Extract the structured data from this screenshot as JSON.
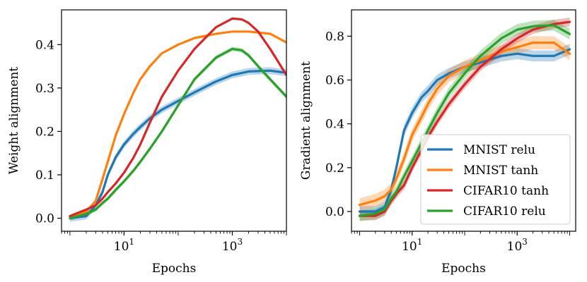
{
  "chart_data": [
    {
      "type": "line",
      "xscale": "log",
      "xlabel": "Epochs",
      "ylabel": "Weight alignment",
      "xlim": [
        0.7,
        10000
      ],
      "ylim": [
        -0.03,
        0.48
      ],
      "xticks": [
        {
          "value": 10,
          "base": "10",
          "exp": "1"
        },
        {
          "value": 1000,
          "base": "10",
          "exp": "3"
        }
      ],
      "yticks": [
        {
          "value": 0.0,
          "label": "0.0"
        },
        {
          "value": 0.1,
          "label": "0.1"
        },
        {
          "value": 0.2,
          "label": "0.2"
        },
        {
          "value": 0.3,
          "label": "0.3"
        },
        {
          "value": 0.4,
          "label": "0.4"
        }
      ],
      "series": [
        {
          "name": "MNIST relu",
          "color": "#1f77b4",
          "band": 0.008,
          "x": [
            1,
            2,
            3,
            4,
            5,
            7,
            10,
            15,
            20,
            30,
            50,
            100,
            200,
            500,
            1000,
            2000,
            5000,
            10000
          ],
          "y": [
            0.0,
            0.005,
            0.03,
            0.06,
            0.1,
            0.14,
            0.17,
            0.195,
            0.21,
            0.23,
            0.25,
            0.27,
            0.29,
            0.315,
            0.33,
            0.338,
            0.34,
            0.335
          ]
        },
        {
          "name": "MNIST tanh",
          "color": "#ff7f0e",
          "band": 0.0,
          "x": [
            1,
            2,
            3,
            4,
            5,
            7,
            10,
            15,
            20,
            30,
            50,
            100,
            200,
            500,
            1000,
            2000,
            5000,
            10000
          ],
          "y": [
            0.0,
            0.015,
            0.04,
            0.09,
            0.13,
            0.19,
            0.24,
            0.29,
            0.32,
            0.35,
            0.38,
            0.4,
            0.415,
            0.425,
            0.43,
            0.43,
            0.425,
            0.405
          ]
        },
        {
          "name": "CIFAR10 tanh",
          "color": "#d62728",
          "band": 0.0,
          "x": [
            1,
            2,
            3,
            4,
            5,
            7,
            10,
            15,
            20,
            30,
            50,
            100,
            200,
            500,
            1000,
            1500,
            2000,
            3000,
            5000,
            10000
          ],
          "y": [
            0.005,
            0.02,
            0.03,
            0.045,
            0.06,
            0.08,
            0.105,
            0.14,
            0.17,
            0.22,
            0.28,
            0.34,
            0.39,
            0.44,
            0.46,
            0.458,
            0.45,
            0.43,
            0.39,
            0.33
          ]
        },
        {
          "name": "CIFAR10 relu",
          "color": "#2ca02c",
          "band": 0.005,
          "x": [
            1,
            2,
            3,
            4,
            5,
            7,
            10,
            15,
            20,
            30,
            50,
            100,
            200,
            500,
            1000,
            1500,
            2000,
            3000,
            5000,
            10000
          ],
          "y": [
            0.0,
            0.01,
            0.02,
            0.035,
            0.045,
            0.065,
            0.085,
            0.11,
            0.13,
            0.16,
            0.2,
            0.26,
            0.32,
            0.37,
            0.39,
            0.387,
            0.375,
            0.35,
            0.32,
            0.28
          ]
        }
      ]
    },
    {
      "type": "line",
      "xscale": "log",
      "xlabel": "Epochs",
      "ylabel": "Gradient alignment",
      "xlim": [
        0.7,
        13000
      ],
      "ylim": [
        -0.09,
        0.92
      ],
      "xticks": [
        {
          "value": 10,
          "base": "10",
          "exp": "1"
        },
        {
          "value": 1000,
          "base": "10",
          "exp": "3"
        }
      ],
      "yticks": [
        {
          "value": 0.0,
          "label": "0.0"
        },
        {
          "value": 0.2,
          "label": "0.2"
        },
        {
          "value": 0.4,
          "label": "0.4"
        },
        {
          "value": 0.6,
          "label": "0.6"
        },
        {
          "value": 0.8,
          "label": "0.8"
        }
      ],
      "legend": {
        "placement": "lower-right"
      },
      "series": [
        {
          "name": "MNIST relu",
          "color": "#1f77b4",
          "band": 0.025,
          "x": [
            1,
            2,
            3,
            4,
            5,
            7,
            10,
            15,
            20,
            30,
            50,
            100,
            200,
            500,
            1000,
            2000,
            5000,
            10000
          ],
          "y": [
            0.0,
            0.0,
            0.02,
            0.1,
            0.2,
            0.37,
            0.45,
            0.52,
            0.55,
            0.6,
            0.63,
            0.66,
            0.68,
            0.71,
            0.72,
            0.71,
            0.71,
            0.74
          ]
        },
        {
          "name": "MNIST tanh",
          "color": "#ff7f0e",
          "band": 0.03,
          "x": [
            1,
            2,
            3,
            4,
            5,
            7,
            10,
            15,
            20,
            30,
            50,
            100,
            200,
            500,
            1000,
            2000,
            5000,
            10000
          ],
          "y": [
            0.03,
            0.05,
            0.07,
            0.1,
            0.15,
            0.24,
            0.35,
            0.43,
            0.49,
            0.56,
            0.62,
            0.66,
            0.69,
            0.73,
            0.75,
            0.77,
            0.77,
            0.72
          ]
        },
        {
          "name": "CIFAR10 tanh",
          "color": "#d62728",
          "band": 0.02,
          "x": [
            1,
            2,
            3,
            4,
            5,
            7,
            10,
            15,
            20,
            30,
            50,
            100,
            200,
            500,
            1000,
            2000,
            5000,
            10000
          ],
          "y": [
            -0.02,
            -0.02,
            0.0,
            0.05,
            0.08,
            0.12,
            0.2,
            0.28,
            0.34,
            0.41,
            0.49,
            0.58,
            0.66,
            0.74,
            0.79,
            0.83,
            0.855,
            0.865
          ]
        },
        {
          "name": "CIFAR10 relu",
          "color": "#2ca02c",
          "band": 0.025,
          "x": [
            1,
            2,
            3,
            4,
            5,
            7,
            10,
            15,
            20,
            30,
            50,
            100,
            200,
            500,
            1000,
            2000,
            5000,
            10000
          ],
          "y": [
            -0.02,
            -0.01,
            0.01,
            0.06,
            0.09,
            0.16,
            0.23,
            0.31,
            0.37,
            0.45,
            0.54,
            0.63,
            0.71,
            0.79,
            0.83,
            0.845,
            0.85,
            0.81
          ]
        }
      ]
    }
  ]
}
